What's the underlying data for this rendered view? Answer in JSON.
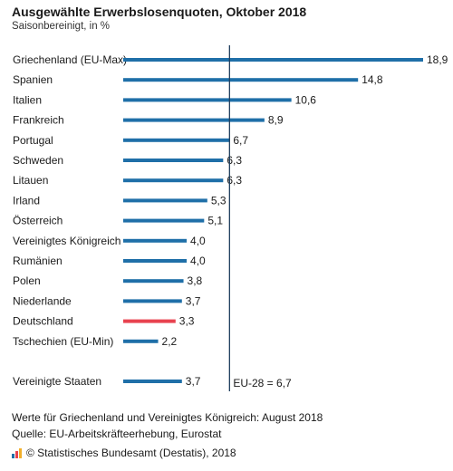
{
  "chart_data": {
    "type": "bar",
    "orientation": "horizontal",
    "title": "Ausgewählte Erwerbslosenquoten, Oktober 2018",
    "subtitle": "Saisonbereinigt, in %",
    "categories": [
      "Griechenland (EU-Max)",
      "Spanien",
      "Italien",
      "Frankreich",
      "Portugal",
      "Schweden",
      "Litauen",
      "Irland",
      "Österreich",
      "Vereinigtes Königreich",
      "Rumänien",
      "Polen",
      "Niederlande",
      "Deutschland",
      "Tschechien (EU-Min)",
      "Vereinigte Staaten"
    ],
    "values": [
      18.9,
      14.8,
      10.6,
      8.9,
      6.7,
      6.3,
      6.3,
      5.3,
      5.1,
      4.0,
      4.0,
      3.8,
      3.7,
      3.3,
      2.2,
      3.7
    ],
    "value_labels": [
      "18,9",
      "14,8",
      "10,6",
      "8,9",
      "6,7",
      "6,3",
      "6,3",
      "5,3",
      "5,1",
      "4,0",
      "4,0",
      "3,8",
      "3,7",
      "3,3",
      "2,2",
      "3,7"
    ],
    "highlight_category": "Deutschland",
    "reference_line": {
      "value": 6.7,
      "label": "EU-28 = 6,7"
    },
    "xlim": [
      0,
      18.9
    ],
    "colors": {
      "bar": "#1f6fa8",
      "highlight": "#e8424f",
      "reference_line": "#1f3f5f"
    }
  },
  "notes": {
    "line1": "Werte für Griechenland und Vereinigtes Königreich: August 2018",
    "line2": "Quelle: EU-Arbeitskräfteerhebung, Eurostat"
  },
  "footer": {
    "text": "© Statistisches Bundesamt (Destatis), 2018"
  }
}
